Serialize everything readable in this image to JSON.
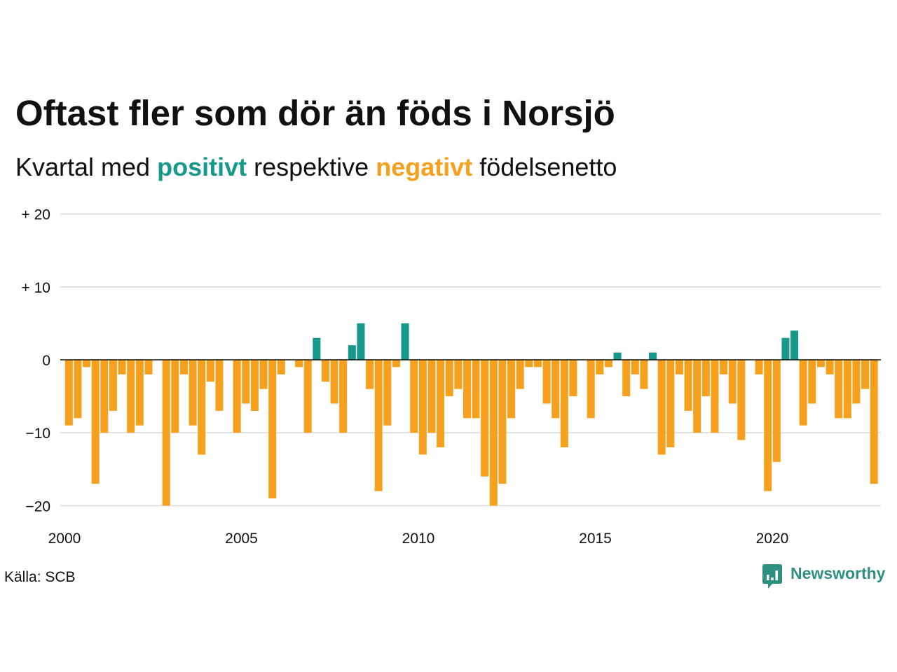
{
  "chart_data": {
    "type": "bar",
    "title": "Oftast fler som dör än föds i Norsjö",
    "subtitle": {
      "prefix": "Kvartal med",
      "positive": "positivt",
      "middle": "respektive",
      "negative": "negativt",
      "suffix": "födelsenetto"
    },
    "x": [
      "2000-Q1",
      "2000-Q2",
      "2000-Q3",
      "2000-Q4",
      "2001-Q1",
      "2001-Q2",
      "2001-Q3",
      "2001-Q4",
      "2002-Q1",
      "2002-Q2",
      "2002-Q3",
      "2002-Q4",
      "2003-Q1",
      "2003-Q2",
      "2003-Q3",
      "2003-Q4",
      "2004-Q1",
      "2004-Q2",
      "2004-Q3",
      "2004-Q4",
      "2005-Q1",
      "2005-Q2",
      "2005-Q3",
      "2005-Q4",
      "2006-Q1",
      "2006-Q2",
      "2006-Q3",
      "2006-Q4",
      "2007-Q1",
      "2007-Q2",
      "2007-Q3",
      "2007-Q4",
      "2008-Q1",
      "2008-Q2",
      "2008-Q3",
      "2008-Q4",
      "2009-Q1",
      "2009-Q2",
      "2009-Q3",
      "2009-Q4",
      "2010-Q1",
      "2010-Q2",
      "2010-Q3",
      "2010-Q4",
      "2011-Q1",
      "2011-Q2",
      "2011-Q3",
      "2011-Q4",
      "2012-Q1",
      "2012-Q2",
      "2012-Q3",
      "2012-Q4",
      "2013-Q1",
      "2013-Q2",
      "2013-Q3",
      "2013-Q4",
      "2014-Q1",
      "2014-Q2",
      "2014-Q3",
      "2014-Q4",
      "2015-Q1",
      "2015-Q2",
      "2015-Q3",
      "2015-Q4",
      "2016-Q1",
      "2016-Q2",
      "2016-Q3",
      "2016-Q4",
      "2017-Q1",
      "2017-Q2",
      "2017-Q3",
      "2017-Q4",
      "2018-Q1",
      "2018-Q2",
      "2018-Q3",
      "2018-Q4",
      "2019-Q1",
      "2019-Q2",
      "2019-Q3",
      "2019-Q4",
      "2020-Q1",
      "2020-Q2",
      "2020-Q3",
      "2020-Q4",
      "2021-Q1",
      "2021-Q2",
      "2021-Q3",
      "2021-Q4",
      "2022-Q1",
      "2022-Q2",
      "2022-Q3",
      "2022-Q4"
    ],
    "values": [
      -9,
      -8,
      -1,
      -17,
      -10,
      -7,
      -2,
      -10,
      -9,
      -2,
      0,
      -20,
      -10,
      -2,
      -9,
      -13,
      -3,
      -7,
      0,
      -10,
      -6,
      -7,
      -4,
      -19,
      -2,
      0,
      -1,
      -10,
      3,
      -3,
      -6,
      -10,
      2,
      5,
      -4,
      -18,
      -9,
      -1,
      5,
      -10,
      -13,
      -10,
      -12,
      -5,
      -4,
      -8,
      -8,
      -16,
      -20,
      -17,
      -8,
      -4,
      -1,
      -1,
      -6,
      -8,
      -12,
      -5,
      0,
      -8,
      -2,
      -1,
      1,
      -5,
      -2,
      -4,
      1,
      -13,
      -12,
      -2,
      -7,
      -10,
      -5,
      -10,
      -2,
      -6,
      -11,
      0,
      -2,
      -18,
      -14,
      3,
      4,
      -9,
      -6,
      -1,
      -2,
      -8,
      -8,
      -6,
      -4,
      -17
    ],
    "xlim": [
      2000,
      2023
    ],
    "xticks": [
      2000,
      2005,
      2010,
      2015,
      2020
    ],
    "xtick_labels": [
      "2000",
      "2005",
      "2010",
      "2015",
      "2020"
    ],
    "ylim": [
      -20,
      20
    ],
    "yticks": [
      20,
      10,
      0,
      -10,
      -20
    ],
    "ytick_labels": [
      "+ 20",
      "+ 10",
      "0",
      "−10",
      "−20"
    ],
    "grid": "horizontal",
    "colors": {
      "positive": "#16998a",
      "negative": "#f6a11d"
    }
  },
  "source": "Källa: SCB",
  "logo": {
    "text": "Newsworthy",
    "icon": "newsworthy-logo-icon",
    "color": "#2f8f80"
  },
  "colors": {
    "title": "#111111",
    "grid": "#dcdcdc",
    "zero_line": "#111111"
  }
}
